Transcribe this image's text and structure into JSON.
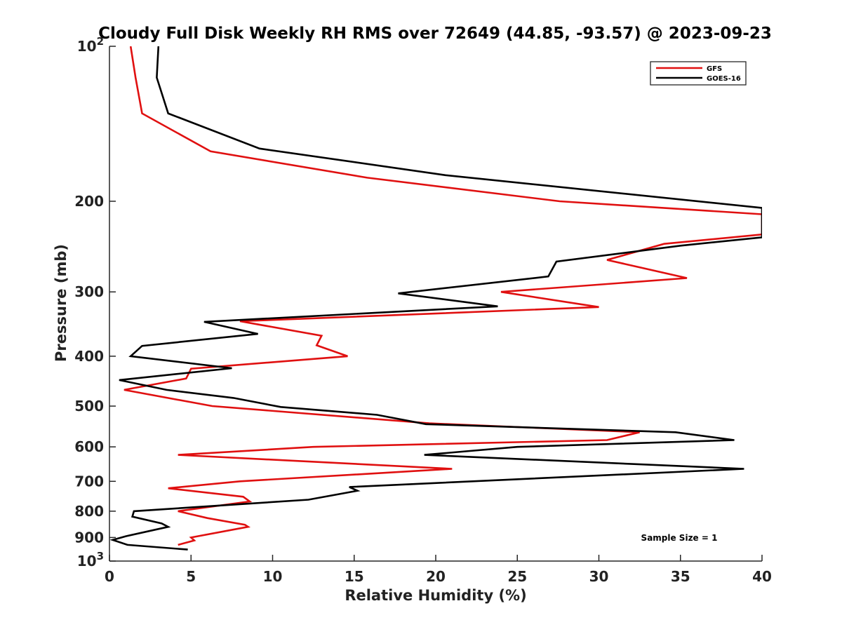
{
  "chart_data": {
    "type": "line",
    "title": "Cloudy Full Disk Weekly RH RMS over 72649 (44.85, -93.57) @ 2023-09-23",
    "xlabel": "Relative Humidity (%)",
    "ylabel": "Pressure (mb)",
    "xlim": [
      0,
      40
    ],
    "ylim": [
      100,
      1000
    ],
    "y_scale": "log",
    "y_reversed": true,
    "grid": false,
    "legend_placement": "top-right",
    "x_ticks": [
      0,
      5,
      10,
      15,
      20,
      25,
      30,
      35,
      40
    ],
    "x_tick_labels": [
      "0",
      "5",
      "10",
      "15",
      "20",
      "25",
      "30",
      "35",
      "40"
    ],
    "y_ticks": [
      100,
      200,
      300,
      400,
      500,
      600,
      700,
      800,
      900,
      1000
    ],
    "y_tick_labels": [
      {
        "base": "10",
        "exp": "2"
      },
      {
        "base": "200",
        "exp": ""
      },
      {
        "base": "300",
        "exp": ""
      },
      {
        "base": "400",
        "exp": ""
      },
      {
        "base": "500",
        "exp": ""
      },
      {
        "base": "600",
        "exp": ""
      },
      {
        "base": "700",
        "exp": ""
      },
      {
        "base": "800",
        "exp": ""
      },
      {
        "base": "900",
        "exp": ""
      },
      {
        "base": "10",
        "exp": "3"
      }
    ],
    "annotation": "Sample Size = 1",
    "series": [
      {
        "name": "GFS",
        "color": "#e01010",
        "points": [
          [
            1.3,
            100
          ],
          [
            1.6,
            115
          ],
          [
            2.0,
            135
          ],
          [
            6.2,
            160
          ],
          [
            15.8,
            180
          ],
          [
            27.6,
            200
          ],
          [
            40,
            212
          ],
          [
            40,
            232
          ],
          [
            34,
            242
          ],
          [
            30.5,
            260
          ],
          [
            35.4,
            282
          ],
          [
            24,
            300
          ],
          [
            30.0,
            321
          ],
          [
            8.0,
            342
          ],
          [
            13.0,
            365
          ],
          [
            12.7,
            381
          ],
          [
            14.6,
            400
          ],
          [
            5.0,
            423
          ],
          [
            4.7,
            442
          ],
          [
            0.9,
            465
          ],
          [
            6.3,
            500
          ],
          [
            19.6,
            540
          ],
          [
            32.5,
            562
          ],
          [
            30.5,
            582
          ],
          [
            12.5,
            600
          ],
          [
            4.2,
            622
          ],
          [
            21.0,
            662
          ],
          [
            8.0,
            700
          ],
          [
            3.6,
            722
          ],
          [
            8.2,
            750
          ],
          [
            8.6,
            766
          ],
          [
            4.2,
            800
          ],
          [
            6.0,
            825
          ],
          [
            8.3,
            850
          ],
          [
            8.5,
            858
          ],
          [
            5.0,
            900
          ],
          [
            5.2,
            912
          ],
          [
            4.2,
            930
          ]
        ]
      },
      {
        "name": "GOES-16",
        "color": "#000000",
        "points": [
          [
            3.0,
            100
          ],
          [
            2.9,
            115
          ],
          [
            3.6,
            135
          ],
          [
            9.2,
            158
          ],
          [
            20.6,
            178
          ],
          [
            40,
            206
          ],
          [
            40,
            235
          ],
          [
            35,
            244
          ],
          [
            27.4,
            262
          ],
          [
            26.9,
            280
          ],
          [
            17.7,
            302
          ],
          [
            23.8,
            320
          ],
          [
            5.8,
            343
          ],
          [
            9.1,
            362
          ],
          [
            2.0,
            382
          ],
          [
            1.3,
            400
          ],
          [
            7.5,
            422
          ],
          [
            0.6,
            445
          ],
          [
            3.5,
            465
          ],
          [
            7.6,
            482
          ],
          [
            10.5,
            502
          ],
          [
            16.4,
            520
          ],
          [
            19.4,
            542
          ],
          [
            34.7,
            562
          ],
          [
            38.3,
            582
          ],
          [
            25.0,
            600
          ],
          [
            19.3,
            622
          ],
          [
            38.9,
            662
          ],
          [
            14.7,
            718
          ],
          [
            15.2,
            730
          ],
          [
            12.2,
            760
          ],
          [
            1.5,
            800
          ],
          [
            1.4,
            820
          ],
          [
            3.2,
            845
          ],
          [
            3.6,
            858
          ],
          [
            1.0,
            895
          ],
          [
            0.2,
            910
          ],
          [
            1.1,
            930
          ],
          [
            4.8,
            950
          ]
        ]
      }
    ]
  }
}
